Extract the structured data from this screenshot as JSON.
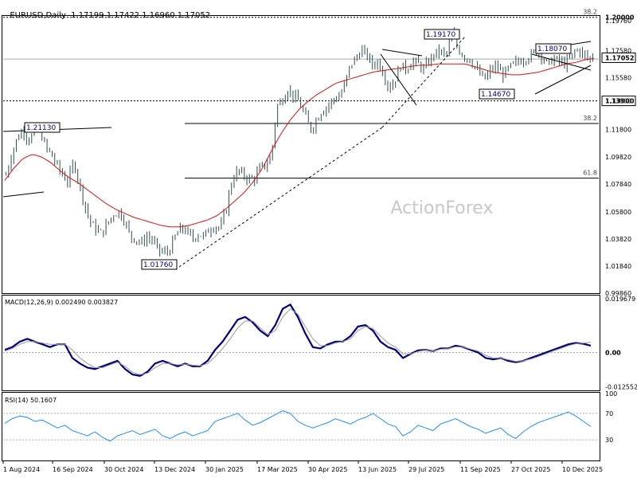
{
  "header": {
    "symbol": "EURUSD,Daily",
    "ohlc": "1.17199 1.17422 1.16960 1.17052"
  },
  "watermark": "ActionForex",
  "colors": {
    "candle": "#2f4f4f",
    "ma": "#e01010",
    "macd_line": "#00007f",
    "macd_signal": "#9a9a9a",
    "rsi": "#1e90ff",
    "grid": "#000000"
  },
  "chart_data": [
    {
      "type": "candlestick",
      "name": "price",
      "x_ticks": [
        "1 Aug 2024",
        "16 Sep 2024",
        "30 Oct 2024",
        "13 Dec 2024",
        "30 Jan 2025",
        "17 Mar 2025",
        "30 Apr 2025",
        "13 Jun 2025",
        "29 Jul 2025",
        "11 Sep 2025",
        "27 Oct 2025",
        "10 Dec 2025"
      ],
      "y_ticks": [
        "1.19760",
        "1.17580",
        "1.15580",
        "1.13900",
        "1.11800",
        "1.09820",
        "1.07840",
        "1.05800",
        "1.03820",
        "1.01840",
        "0.99860"
      ],
      "ylim": [
        0.9986,
        1.201
      ],
      "current_price_label": "1.17052",
      "price_path": [
        1.085,
        1.1,
        1.112,
        1.118,
        1.11,
        1.116,
        1.118,
        1.105,
        1.1,
        1.092,
        1.085,
        1.08,
        1.095,
        1.078,
        1.062,
        1.05,
        1.045,
        1.042,
        1.05,
        1.056,
        1.058,
        1.052,
        1.04,
        1.038,
        1.035,
        1.04,
        1.037,
        1.03,
        1.028,
        1.03,
        1.04,
        1.046,
        1.044,
        1.038,
        1.042,
        1.04,
        1.045,
        1.048,
        1.046,
        1.06,
        1.08,
        1.088,
        1.085,
        1.082,
        1.082,
        1.09,
        1.092,
        1.098,
        1.135,
        1.14,
        1.148,
        1.142,
        1.138,
        1.128,
        1.118,
        1.125,
        1.132,
        1.135,
        1.14,
        1.142,
        1.15,
        1.165,
        1.17,
        1.176,
        1.172,
        1.165,
        1.168,
        1.158,
        1.148,
        1.155,
        1.165,
        1.162,
        1.168,
        1.166,
        1.162,
        1.168,
        1.174,
        1.175,
        1.172,
        1.188,
        1.178,
        1.172,
        1.17,
        1.165,
        1.158,
        1.155,
        1.162,
        1.164,
        1.158,
        1.162,
        1.166,
        1.168,
        1.17,
        1.172,
        1.175,
        1.172,
        1.165,
        1.17,
        1.168,
        1.166,
        1.17,
        1.176,
        1.175,
        1.17,
        1.171
      ],
      "ma_path": [
        1.081,
        1.09,
        1.097,
        1.1,
        1.098,
        1.094,
        1.088,
        1.083,
        1.079,
        1.074,
        1.069,
        1.064,
        1.06,
        1.057,
        1.054,
        1.052,
        1.05,
        1.048,
        1.047,
        1.047,
        1.048,
        1.05,
        1.052,
        1.055,
        1.06,
        1.066,
        1.072,
        1.08,
        1.09,
        1.103,
        1.115,
        1.125,
        1.133,
        1.139,
        1.144,
        1.148,
        1.152,
        1.154,
        1.156,
        1.158,
        1.16,
        1.161,
        1.162,
        1.163,
        1.164,
        1.165,
        1.165,
        1.166,
        1.166,
        1.166,
        1.166,
        1.164,
        1.162,
        1.16,
        1.159,
        1.158,
        1.158,
        1.159,
        1.16,
        1.162,
        1.164,
        1.166,
        1.167,
        1.169,
        1.17
      ],
      "horizontal_levels": [
        {
          "value": 1.2,
          "label": "1.20000",
          "fib": "38.2",
          "style": "dotted"
        },
        {
          "value": 1.139,
          "label": "1.13900",
          "style": "dotted"
        },
        {
          "value": 1.1695,
          "style": "solid-gray"
        }
      ],
      "fib_levels": [
        {
          "value": 1.1225,
          "label": "38.2"
        },
        {
          "value": 1.0826,
          "label": "61.8"
        }
      ],
      "annotations": [
        {
          "text": "1.21130",
          "date_index": 1
        },
        {
          "text": "1.01760",
          "date_index": 3
        },
        {
          "text": "1.19170",
          "date_index": 8
        },
        {
          "text": "1.14670",
          "date_index": 10
        },
        {
          "text": "1.18070",
          "date_index": 11
        }
      ]
    },
    {
      "type": "line",
      "name": "MACD",
      "label": "MACD(12,26,9) 0.002490 0.003827",
      "y_ticks": [
        "0.019679",
        "0.00",
        "-0.012552"
      ],
      "ylim": [
        -0.0135,
        0.0205
      ],
      "series": [
        {
          "key": "macd",
          "values": [
            0.001,
            0.002,
            0.004,
            0.005,
            0.004,
            0.003,
            0.002,
            0.003,
            0.003,
            -0.002,
            -0.004,
            -0.0055,
            -0.006,
            -0.005,
            -0.004,
            -0.003,
            -0.006,
            -0.008,
            -0.0085,
            -0.007,
            -0.004,
            -0.003,
            -0.004,
            -0.005,
            -0.004,
            -0.005,
            -0.005,
            -0.003,
            0.001,
            0.004,
            0.008,
            0.012,
            0.013,
            0.011,
            0.008,
            0.006,
            0.01,
            0.016,
            0.0175,
            0.013,
            0.007,
            0.002,
            0.0015,
            0.003,
            0.004,
            0.004,
            0.006,
            0.0095,
            0.01,
            0.008,
            0.004,
            0.002,
            0.001,
            -0.002,
            -0.0005,
            0.0008,
            0.001,
            0.0005,
            0.0015,
            0.0015,
            0.0025,
            0.002,
            0.001,
            0.0,
            -0.002,
            -0.0025,
            -0.002,
            -0.003,
            -0.0035,
            -0.003,
            -0.002,
            -0.001,
            0.0,
            0.001,
            0.002,
            0.003,
            0.0035,
            0.0032,
            0.0025
          ]
        },
        {
          "key": "signal",
          "values": [
            0.0005,
            0.0015,
            0.003,
            0.004,
            0.004,
            0.0035,
            0.003,
            0.003,
            0.003,
            0.001,
            -0.002,
            -0.004,
            -0.0055,
            -0.0055,
            -0.0045,
            -0.0035,
            -0.005,
            -0.0072,
            -0.008,
            -0.0075,
            -0.0055,
            -0.004,
            -0.004,
            -0.0045,
            -0.0042,
            -0.0046,
            -0.0048,
            -0.004,
            -0.0015,
            0.0015,
            0.005,
            0.009,
            0.0115,
            0.0115,
            0.009,
            0.0065,
            0.008,
            0.013,
            0.016,
            0.014,
            0.0095,
            0.005,
            0.0025,
            0.0025,
            0.0035,
            0.004,
            0.005,
            0.008,
            0.0095,
            0.0088,
            0.006,
            0.0035,
            0.002,
            -0.0005,
            -0.0005,
            0.0004,
            0.0009,
            0.0006,
            0.0012,
            0.0014,
            0.0021,
            0.002,
            0.0013,
            0.0005,
            -0.001,
            -0.002,
            -0.002,
            -0.0026,
            -0.0032,
            -0.003,
            -0.0024,
            -0.0015,
            -0.0005,
            0.0006,
            0.0015,
            0.0025,
            0.0032,
            0.0034,
            0.0038
          ]
        }
      ]
    },
    {
      "type": "line",
      "name": "RSI",
      "label": "RSI(14) 50.1607",
      "y_ticks": [
        "100",
        "70",
        "30",
        "0"
      ],
      "ylim": [
        0,
        100
      ],
      "levels": [
        70,
        30
      ],
      "values": [
        55,
        62,
        66,
        64,
        58,
        60,
        54,
        48,
        52,
        44,
        40,
        36,
        42,
        34,
        28,
        36,
        40,
        44,
        38,
        42,
        46,
        36,
        32,
        38,
        42,
        36,
        40,
        44,
        58,
        62,
        66,
        70,
        60,
        52,
        56,
        62,
        68,
        74,
        70,
        58,
        52,
        48,
        52,
        56,
        62,
        58,
        54,
        60,
        64,
        70,
        62,
        54,
        50,
        36,
        42,
        52,
        48,
        44,
        54,
        58,
        62,
        56,
        50,
        46,
        40,
        44,
        48,
        38,
        32,
        42,
        50,
        56,
        60,
        64,
        68,
        72,
        66,
        58,
        50
      ]
    }
  ]
}
